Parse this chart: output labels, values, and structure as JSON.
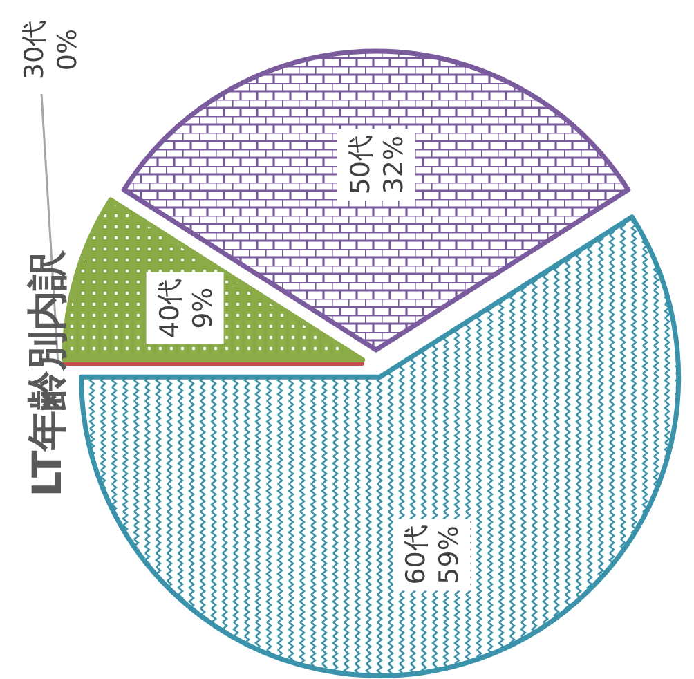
{
  "chart_data": {
    "type": "pie",
    "title": "LT年齢別内訳",
    "categories": [
      "30代",
      "40代",
      "50代",
      "60代"
    ],
    "values": [
      0,
      9,
      32,
      59
    ],
    "colors": [
      "#c0504d",
      "#8aab47",
      "#7a5c9e",
      "#3a93ab"
    ],
    "value_labels": [
      "0%",
      "9%",
      "32%",
      "59%"
    ],
    "legend": false
  }
}
